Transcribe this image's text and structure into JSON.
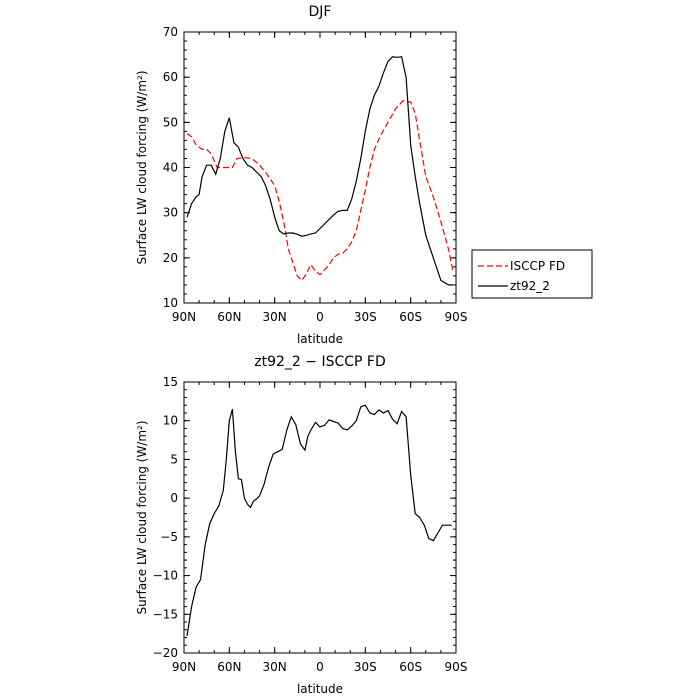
{
  "chart_data": [
    {
      "type": "line",
      "title": "DJF",
      "xlabel": "latitude",
      "ylabel": "Surface LW cloud forcing (W/m²)",
      "xlim": [
        90,
        -90
      ],
      "ylim": [
        10,
        70
      ],
      "x_ticks": [
        90,
        60,
        30,
        0,
        -30,
        -60,
        -90
      ],
      "x_tick_labels": [
        "90N",
        "60N",
        "30N",
        "0",
        "30S",
        "60S",
        "90S"
      ],
      "y_ticks": [
        10,
        20,
        30,
        40,
        50,
        60,
        70
      ],
      "y_tick_labels": [
        "10",
        "20",
        "30",
        "40",
        "50",
        "60",
        "70"
      ],
      "legend_position": "right",
      "series": [
        {
          "name": "ISCCP FD",
          "color": "#ff0000",
          "style": "dashed",
          "x": [
            88,
            85,
            82,
            78,
            75,
            72,
            68,
            65,
            62,
            58,
            55,
            50,
            45,
            40,
            35,
            30,
            27,
            24,
            21,
            18,
            15,
            12,
            9,
            6,
            3,
            0,
            -3,
            -6,
            -9,
            -12,
            -15,
            -18,
            -21,
            -24,
            -27,
            -30,
            -33,
            -36,
            -40,
            -45,
            -50,
            -55,
            -60,
            -63,
            -66,
            -70,
            -75,
            -80,
            -85,
            -88
          ],
          "y": [
            47.5,
            46.8,
            45,
            44,
            44,
            43,
            40,
            40,
            40,
            40,
            42,
            42.2,
            42,
            40.5,
            38.5,
            36,
            32.5,
            28,
            22,
            19,
            16,
            15,
            16.5,
            18.5,
            17,
            16.3,
            17.3,
            18.5,
            20,
            20.8,
            21,
            22,
            23.5,
            26,
            30.5,
            35,
            40,
            44,
            47,
            50,
            53,
            54.8,
            54.5,
            52,
            46,
            38,
            33.5,
            28,
            22,
            17
          ]
        },
        {
          "name": "zt92_2",
          "color": "#000000",
          "style": "solid",
          "x": [
            88,
            85,
            82,
            80,
            78,
            75,
            72,
            69,
            66,
            63,
            60,
            57,
            54,
            51,
            48,
            45,
            42,
            39,
            36,
            33,
            30,
            27,
            24,
            21,
            18,
            15,
            12,
            9,
            6,
            3,
            0,
            -3,
            -6,
            -9,
            -12,
            -15,
            -18,
            -21,
            -24,
            -27,
            -30,
            -33,
            -36,
            -39,
            -42,
            -45,
            -48,
            -51,
            -54,
            -57,
            -60,
            -63,
            -66,
            -70,
            -75,
            -80,
            -85,
            -88
          ],
          "y": [
            29,
            32,
            33.5,
            34,
            38,
            40.5,
            40.5,
            38.5,
            42,
            48,
            51,
            45.5,
            44.5,
            42,
            40.5,
            40,
            39,
            38,
            36,
            33,
            29,
            26,
            25.3,
            25.5,
            25.5,
            25.2,
            24.8,
            25,
            25.3,
            25.5,
            26.5,
            27.5,
            28.5,
            29.5,
            30.3,
            30.5,
            30.5,
            33,
            37,
            42,
            48,
            53,
            56,
            58,
            61,
            63.5,
            64.5,
            64.4,
            64.5,
            60,
            45,
            38,
            32,
            25,
            20,
            15,
            14,
            14
          ]
        }
      ]
    },
    {
      "type": "line",
      "title": "zt92_2 − ISCCP FD",
      "xlabel": "latitude",
      "ylabel": "Surface LW cloud forcing (W/m²)",
      "xlim": [
        90,
        -90
      ],
      "ylim": [
        -20,
        15
      ],
      "x_ticks": [
        90,
        60,
        30,
        0,
        -30,
        -60,
        -90
      ],
      "x_tick_labels": [
        "90N",
        "60N",
        "30N",
        "0",
        "30S",
        "60S",
        "90S"
      ],
      "y_ticks": [
        -20,
        -15,
        -10,
        -5,
        0,
        5,
        10,
        15
      ],
      "y_tick_labels": [
        "−20",
        "−15",
        "−10",
        "−5",
        "0",
        "5",
        "10",
        "15"
      ],
      "series": [
        {
          "color": "#000000",
          "style": "solid",
          "x": [
            88,
            85,
            82,
            79,
            76,
            73,
            70,
            67,
            64,
            62,
            60,
            58,
            56,
            54,
            52,
            50,
            48,
            46,
            44,
            42,
            40,
            37,
            34,
            31,
            28,
            25,
            22,
            19,
            16,
            13,
            10,
            8,
            6,
            3,
            0,
            -3,
            -6,
            -9,
            -12,
            -15,
            -18,
            -21,
            -24,
            -27,
            -30,
            -33,
            -36,
            -39,
            -42,
            -45,
            -48,
            -51,
            -54,
            -57,
            -60,
            -63,
            -66,
            -69,
            -72,
            -75,
            -78,
            -81,
            -84,
            -87
          ],
          "y": [
            -17.8,
            -14,
            -11.5,
            -10.5,
            -6,
            -3.3,
            -2,
            -1,
            1,
            5,
            10,
            11.5,
            6,
            2.5,
            2.4,
            0,
            -0.8,
            -1.2,
            -0.4,
            -0.1,
            0.3,
            1.8,
            4,
            5.7,
            6,
            6.3,
            8.8,
            10.5,
            9.5,
            7,
            6.2,
            8,
            8.8,
            9.8,
            9.2,
            9.4,
            10.1,
            9.9,
            9.7,
            9,
            8.8,
            9.3,
            10,
            11.8,
            12,
            11,
            10.8,
            11.4,
            11,
            11.3,
            10.2,
            9.6,
            11.2,
            10.5,
            3,
            -2,
            -2.5,
            -3.5,
            -5.2,
            -5.5,
            -4.5,
            -3.5,
            -3.5,
            -3.5
          ]
        }
      ]
    }
  ]
}
